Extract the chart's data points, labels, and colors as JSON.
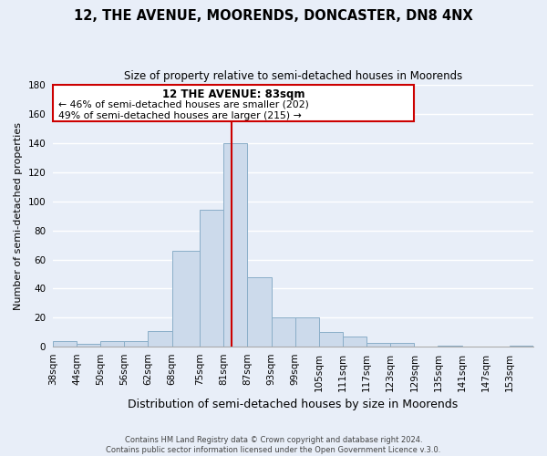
{
  "title": "12, THE AVENUE, MOORENDS, DONCASTER, DN8 4NX",
  "subtitle": "Size of property relative to semi-detached houses in Moorends",
  "xlabel": "Distribution of semi-detached houses by size in Moorends",
  "ylabel": "Number of semi-detached properties",
  "bar_color": "#ccdaeb",
  "bar_edge_color": "#8aaec8",
  "background_color": "#e8eef8",
  "grid_color": "#ffffff",
  "annotation_title": "12 THE AVENUE: 83sqm",
  "annotation_line1": "← 46% of semi-detached houses are smaller (202)",
  "annotation_line2": "49% of semi-detached houses are larger (215) →",
  "vline_x": 83,
  "vline_color": "#cc0000",
  "footer_line1": "Contains HM Land Registry data © Crown copyright and database right 2024.",
  "footer_line2": "Contains public sector information licensed under the Open Government Licence v.3.0.",
  "bin_edges": [
    38,
    44,
    50,
    56,
    62,
    68,
    75,
    81,
    87,
    93,
    99,
    105,
    111,
    117,
    123,
    129,
    135,
    141,
    147,
    153,
    159
  ],
  "bin_counts": [
    4,
    2,
    4,
    4,
    11,
    66,
    94,
    140,
    48,
    20,
    20,
    10,
    7,
    3,
    3,
    0,
    1,
    0,
    0,
    1
  ],
  "ylim": [
    0,
    180
  ],
  "yticks": [
    0,
    20,
    40,
    60,
    80,
    100,
    120,
    140,
    160,
    180
  ],
  "title_fontsize": 10.5,
  "subtitle_fontsize": 8.5,
  "ylabel_fontsize": 8,
  "xlabel_fontsize": 9,
  "tick_fontsize": 7.5,
  "footer_fontsize": 6
}
